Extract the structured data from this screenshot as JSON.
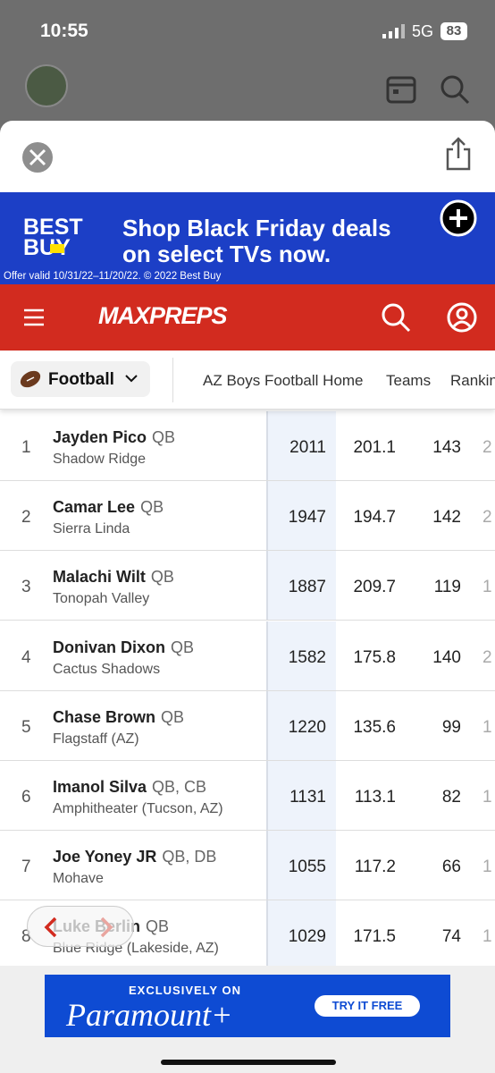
{
  "status": {
    "time": "10:55",
    "network": "5G",
    "battery": "83"
  },
  "ad_top": {
    "brand_line1": "BEST",
    "brand_line2": "BUY",
    "headline_line1": "Shop Black Friday deals",
    "headline_line2": "on select TVs now.",
    "fine_print": "Offer valid 10/31/22–11/20/22. © 2022 Best Buy"
  },
  "nav": {
    "logo": "MAXPREPS"
  },
  "tabs": {
    "sport": "Football",
    "links": [
      "AZ Boys Football Home",
      "Teams",
      "Rankin"
    ]
  },
  "table": {
    "rows": [
      [
        "1",
        "Jayden Pico",
        "QB",
        "Shadow Ridge",
        "2011",
        "201.1",
        "143",
        "2"
      ],
      [
        "2",
        "Camar Lee",
        "QB",
        "Sierra Linda",
        "1947",
        "194.7",
        "142",
        "2"
      ],
      [
        "3",
        "Malachi Wilt",
        "QB",
        "Tonopah Valley",
        "1887",
        "209.7",
        "119",
        "1"
      ],
      [
        "4",
        "Donivan Dixon",
        "QB",
        "Cactus Shadows",
        "1582",
        "175.8",
        "140",
        "2"
      ],
      [
        "5",
        "Chase Brown",
        "QB",
        "Flagstaff (AZ)",
        "1220",
        "135.6",
        "99",
        "1"
      ],
      [
        "6",
        "Imanol Silva",
        "QB, CB",
        "Amphitheater (Tucson, AZ)",
        "1131",
        "113.1",
        "82",
        "1"
      ],
      [
        "7",
        "Joe Yoney JR",
        "QB, DB",
        "Mohave",
        "1055",
        "117.2",
        "66",
        "1"
      ],
      [
        "8",
        "Luke Berlin",
        "QB",
        "Blue Ridge (Lakeside, AZ)",
        "1029",
        "171.5",
        "74",
        "1"
      ]
    ]
  },
  "ad_bottom": {
    "kicker": "EXCLUSIVELY ON",
    "brand": "Paramount+",
    "cta": "TRY IT FREE"
  }
}
